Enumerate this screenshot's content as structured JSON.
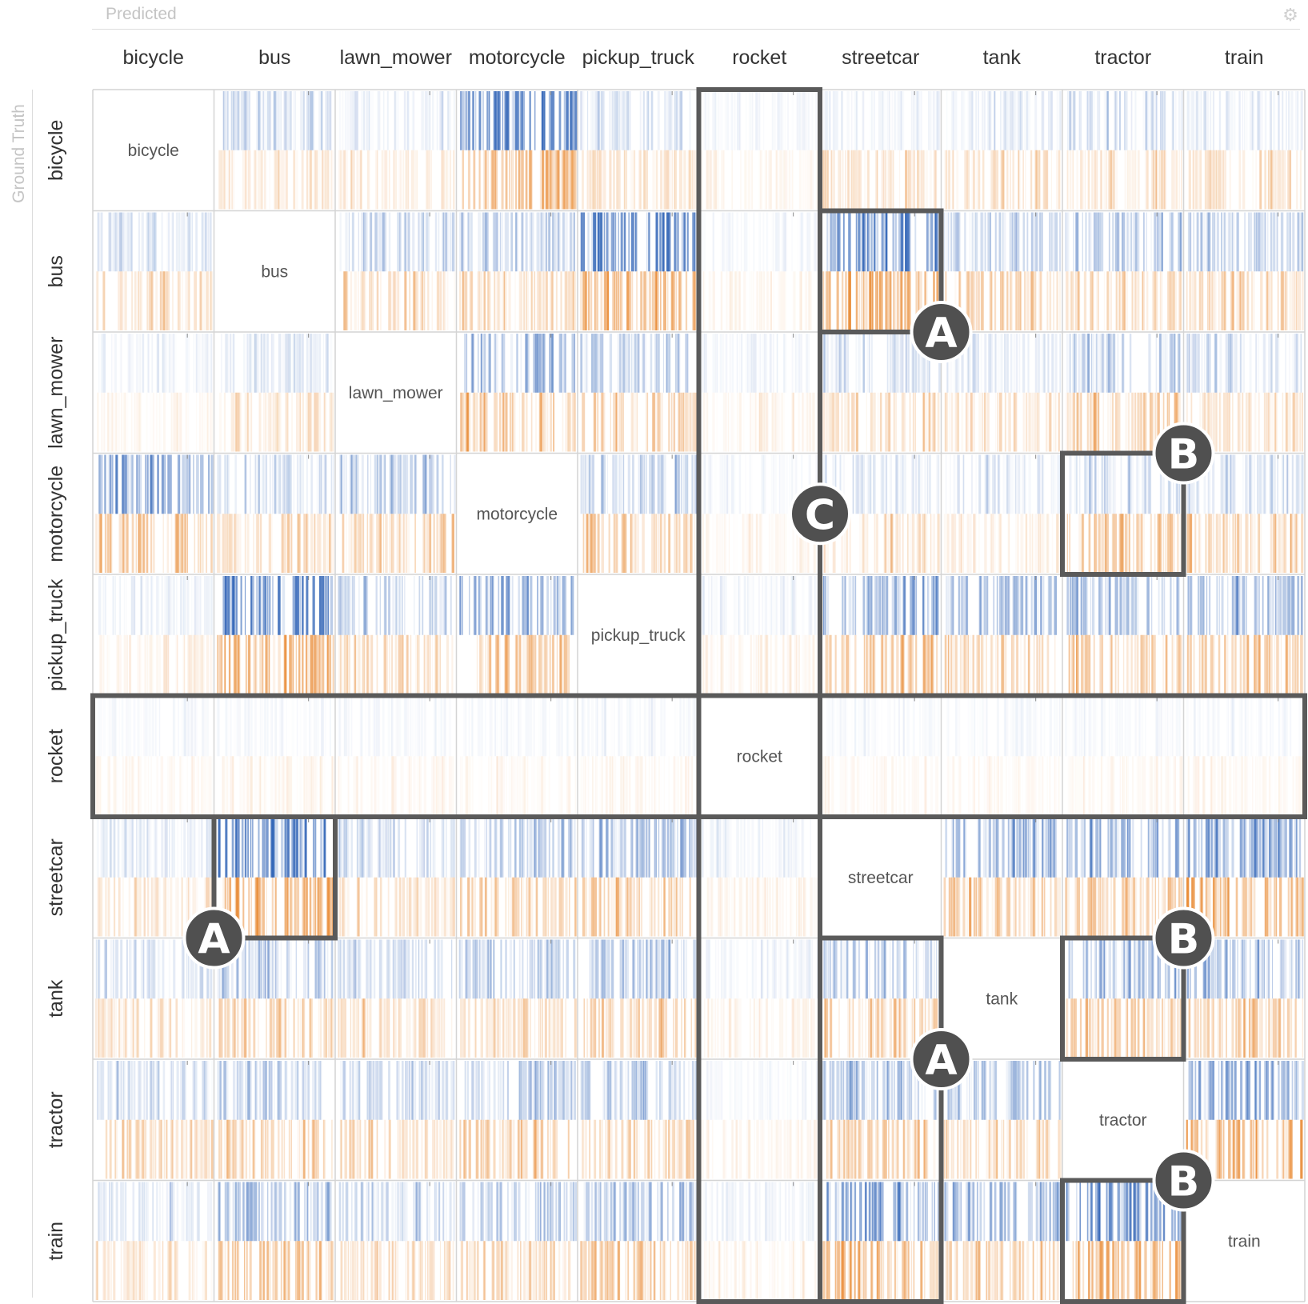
{
  "axes": {
    "x_title": "Predicted",
    "y_title": "Ground Truth",
    "settings_icon": "gear-icon"
  },
  "chart_data": {
    "type": "heatmap",
    "title": "",
    "xlabel": "Predicted",
    "ylabel": "Ground Truth",
    "grid": true,
    "legend": "none",
    "categories": [
      "bicycle",
      "bus",
      "lawn_mower",
      "motorcycle",
      "pickup_truck",
      "rocket",
      "streetcar",
      "tank",
      "tractor",
      "train"
    ],
    "colors": {
      "top_band": "#2f63b6",
      "bottom_band": "#e8872e",
      "annotation": "#5a5a5a",
      "grid": "#d4d4d4"
    },
    "blue_intensity": [
      [
        0,
        0.25,
        0.12,
        0.85,
        0.2,
        0.06,
        0.1,
        0.12,
        0.2,
        0.12
      ],
      [
        0.2,
        0,
        0.25,
        0.35,
        0.85,
        0.06,
        0.9,
        0.3,
        0.4,
        0.35
      ],
      [
        0.08,
        0.15,
        0,
        0.45,
        0.3,
        0.08,
        0.2,
        0.15,
        0.3,
        0.2
      ],
      [
        0.55,
        0.2,
        0.35,
        0,
        0.35,
        0.05,
        0.15,
        0.15,
        0.2,
        0.2
      ],
      [
        0.1,
        0.95,
        0.3,
        0.55,
        0,
        0.08,
        0.55,
        0.45,
        0.4,
        0.45
      ],
      [
        0.05,
        0.05,
        0.05,
        0.05,
        0.05,
        0,
        0.05,
        0.05,
        0.05,
        0.05
      ],
      [
        0.15,
        0.95,
        0.2,
        0.3,
        0.45,
        0.08,
        0,
        0.55,
        0.5,
        0.7
      ],
      [
        0.2,
        0.35,
        0.25,
        0.3,
        0.4,
        0.08,
        0.35,
        0,
        0.45,
        0.45
      ],
      [
        0.2,
        0.3,
        0.25,
        0.35,
        0.3,
        0.05,
        0.45,
        0.35,
        0,
        0.6
      ],
      [
        0.15,
        0.5,
        0.25,
        0.3,
        0.4,
        0.08,
        0.65,
        0.45,
        0.8,
        0
      ]
    ],
    "orange_intensity": [
      [
        0,
        0.25,
        0.2,
        0.85,
        0.3,
        0.1,
        0.3,
        0.3,
        0.3,
        0.3
      ],
      [
        0.3,
        0,
        0.35,
        0.45,
        0.85,
        0.1,
        0.9,
        0.45,
        0.45,
        0.45
      ],
      [
        0.1,
        0.3,
        0,
        0.55,
        0.45,
        0.12,
        0.35,
        0.3,
        0.5,
        0.3
      ],
      [
        0.6,
        0.4,
        0.45,
        0,
        0.55,
        0.1,
        0.25,
        0.2,
        0.6,
        0.45
      ],
      [
        0.15,
        0.85,
        0.4,
        0.6,
        0,
        0.12,
        0.6,
        0.5,
        0.55,
        0.55
      ],
      [
        0.08,
        0.12,
        0.08,
        0.08,
        0.1,
        0,
        0.08,
        0.08,
        0.08,
        0.1
      ],
      [
        0.25,
        0.85,
        0.3,
        0.45,
        0.55,
        0.12,
        0,
        0.6,
        0.55,
        0.8
      ],
      [
        0.3,
        0.45,
        0.35,
        0.4,
        0.5,
        0.12,
        0.45,
        0,
        0.55,
        0.55
      ],
      [
        0.4,
        0.45,
        0.35,
        0.5,
        0.4,
        0.1,
        0.5,
        0.4,
        0,
        0.75
      ],
      [
        0.25,
        0.6,
        0.35,
        0.4,
        0.55,
        0.1,
        0.7,
        0.5,
        0.8,
        0
      ]
    ],
    "annotations": [
      {
        "label": "A",
        "type": "cell",
        "row": 1,
        "col": 6
      },
      {
        "label": "A",
        "type": "cell",
        "row": 6,
        "col": 1
      },
      {
        "label": "A",
        "type": "cells",
        "rows": [
          7,
          9
        ],
        "col": 6
      },
      {
        "label": "B",
        "type": "cell",
        "row": 3,
        "col": 8
      },
      {
        "label": "B",
        "type": "cell",
        "row": 7,
        "col": 8
      },
      {
        "label": "B",
        "type": "cell",
        "row": 9,
        "col": 8
      },
      {
        "label": "C",
        "type": "cross",
        "row": 5,
        "col": 5
      }
    ]
  }
}
